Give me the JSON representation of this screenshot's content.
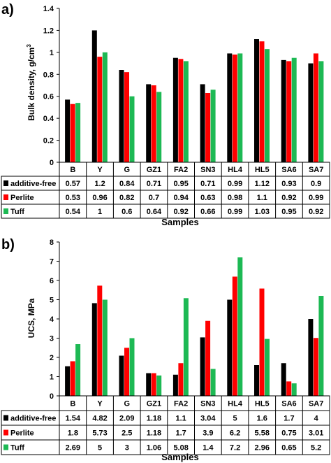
{
  "chart_data": [
    {
      "type": "bar",
      "panel_label": "a)",
      "title": "",
      "ylabel": "Bulk density, g/cm",
      "ylabel_sup": "3",
      "xlabel": "Samples",
      "ylim": [
        0,
        1.4
      ],
      "yticks": [
        "0",
        "0.2",
        "0.4",
        "0.6",
        "0.8",
        "1",
        "1.2",
        "1.4"
      ],
      "categories": [
        "B",
        "Y",
        "G",
        "GZ1",
        "FA2",
        "SN3",
        "HL4",
        "HL5",
        "SA6",
        "SA7"
      ],
      "series": [
        {
          "name": "additive-free",
          "color": "#000000",
          "values": [
            0.57,
            1.2,
            0.84,
            0.71,
            0.95,
            0.71,
            0.99,
            1.12,
            0.93,
            0.9
          ],
          "labels": [
            "0.57",
            "1.2",
            "0.84",
            "0.71",
            "0.95",
            "0.71",
            "0.99",
            "1.12",
            "0.93",
            "0.9"
          ]
        },
        {
          "name": "Perlite",
          "color": "#ff0000",
          "values": [
            0.53,
            0.96,
            0.82,
            0.7,
            0.94,
            0.63,
            0.98,
            1.1,
            0.92,
            0.99
          ],
          "labels": [
            "0.53",
            "0.96",
            "0.82",
            "0.7",
            "0.94",
            "0.63",
            "0.98",
            "1.1",
            "0.92",
            "0.99"
          ]
        },
        {
          "name": "Tuff",
          "color": "#1db954",
          "values": [
            0.54,
            1,
            0.6,
            0.64,
            0.92,
            0.66,
            0.99,
            1.03,
            0.95,
            0.92
          ],
          "labels": [
            "0.54",
            "1",
            "0.6",
            "0.64",
            "0.92",
            "0.66",
            "0.99",
            "1.03",
            "0.95",
            "0.92"
          ]
        }
      ],
      "grid": false
    },
    {
      "type": "bar",
      "panel_label": "b)",
      "title": "",
      "ylabel": "UCS, MPa",
      "ylabel_sup": "",
      "xlabel": "Samples",
      "ylim": [
        0,
        8
      ],
      "yticks": [
        "0",
        "1",
        "2",
        "3",
        "4",
        "5",
        "6",
        "7",
        "8"
      ],
      "categories": [
        "B",
        "Y",
        "G",
        "GZ1",
        "FA2",
        "SN3",
        "HL4",
        "HL5",
        "SA6",
        "SA7"
      ],
      "series": [
        {
          "name": "additive-free",
          "color": "#000000",
          "values": [
            1.54,
            4.82,
            2.09,
            1.18,
            1.1,
            3.04,
            5,
            1.6,
            1.7,
            4
          ],
          "labels": [
            "1.54",
            "4.82",
            "2.09",
            "1.18",
            "1.1",
            "3.04",
            "5",
            "1.6",
            "1.7",
            "4"
          ]
        },
        {
          "name": "Perlite",
          "color": "#ff0000",
          "values": [
            1.8,
            5.73,
            2.5,
            1.18,
            1.7,
            3.9,
            6.2,
            5.58,
            0.75,
            3.01
          ],
          "labels": [
            "1.8",
            "5.73",
            "2.5",
            "1.18",
            "1.7",
            "3.9",
            "6.2",
            "5.58",
            "0.75",
            "3.01"
          ]
        },
        {
          "name": "Tuff",
          "color": "#1db954",
          "values": [
            2.69,
            5,
            3,
            1.06,
            5.08,
            1.4,
            7.2,
            2.96,
            0.65,
            5.2
          ],
          "labels": [
            "2.69",
            "5",
            "3",
            "1.06",
            "5.08",
            "1.4",
            "7.2",
            "2.96",
            "0.65",
            "5.2"
          ]
        }
      ],
      "grid": false
    }
  ]
}
